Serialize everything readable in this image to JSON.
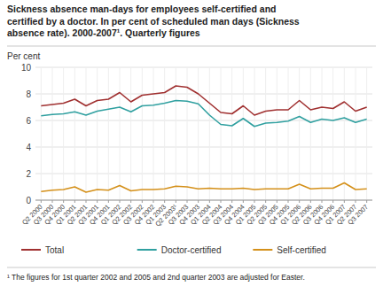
{
  "chart_data": {
    "type": "line",
    "title": "Sickness absence man-days for employees self-certified and\ncertified by a doctor. In per cent of scheduled man days (Sickness\nabsence rate). 2000-2007¹. Quarterly figures",
    "ylabel": "Per cent",
    "annotations": [
      "¹ The figures for 1st quarter 2002 and 2005 and 2nd quarter 2003 are adjusted for Easter."
    ],
    "categories": [
      "Q2 2000",
      "Q3 2000",
      "Q4 2000",
      "Q1 2001",
      "Q2 2001",
      "Q3 2001",
      "Q4 2001",
      "Q1 2002",
      "Q2 2002",
      "Q3 2002",
      "Q4 2002",
      "Q1 2003",
      "Q2 2003¹",
      "Q3 2003",
      "Q4 2003",
      "Q1 2004",
      "Q2 2004",
      "Q3 2004",
      "Q4 2004",
      "Q1 2005",
      "Q2 2005",
      "Q3 2005",
      "Q4 2005",
      "Q1 2006",
      "Q2 2006",
      "Q3 2006",
      "Q4 2006",
      "Q1 2007",
      "Q2 2007",
      "Q3 2007"
    ],
    "series": [
      {
        "name": "Total",
        "color": "#A03030",
        "values": [
          7.1,
          7.2,
          7.3,
          7.6,
          7.1,
          7.5,
          7.6,
          8.1,
          7.4,
          7.9,
          8.0,
          8.1,
          8.6,
          8.5,
          8.0,
          7.3,
          6.6,
          6.5,
          7.1,
          6.4,
          6.7,
          6.8,
          6.8,
          7.5,
          6.8,
          7.0,
          6.9,
          7.4,
          6.7,
          7.0
        ]
      },
      {
        "name": "Doctor-certified",
        "color": "#30A0A0",
        "values": [
          6.35,
          6.45,
          6.5,
          6.65,
          6.4,
          6.7,
          6.85,
          7.0,
          6.65,
          7.1,
          7.15,
          7.3,
          7.5,
          7.45,
          7.25,
          6.4,
          5.7,
          5.6,
          6.15,
          5.55,
          5.8,
          5.85,
          5.95,
          6.3,
          5.85,
          6.1,
          6.0,
          6.2,
          5.85,
          6.1
        ]
      },
      {
        "name": "Self-certified",
        "color": "#D4901A",
        "values": [
          0.65,
          0.75,
          0.8,
          1.0,
          0.6,
          0.8,
          0.75,
          1.1,
          0.7,
          0.8,
          0.8,
          0.85,
          1.05,
          1.0,
          0.85,
          0.9,
          0.85,
          0.85,
          0.9,
          0.8,
          0.85,
          0.85,
          0.85,
          1.2,
          0.85,
          0.9,
          0.9,
          1.3,
          0.8,
          0.85
        ]
      }
    ],
    "ylim": [
      0,
      10
    ],
    "yticks": [
      0,
      2,
      4,
      6,
      8,
      10
    ],
    "grid": true,
    "legend": "bottom"
  }
}
